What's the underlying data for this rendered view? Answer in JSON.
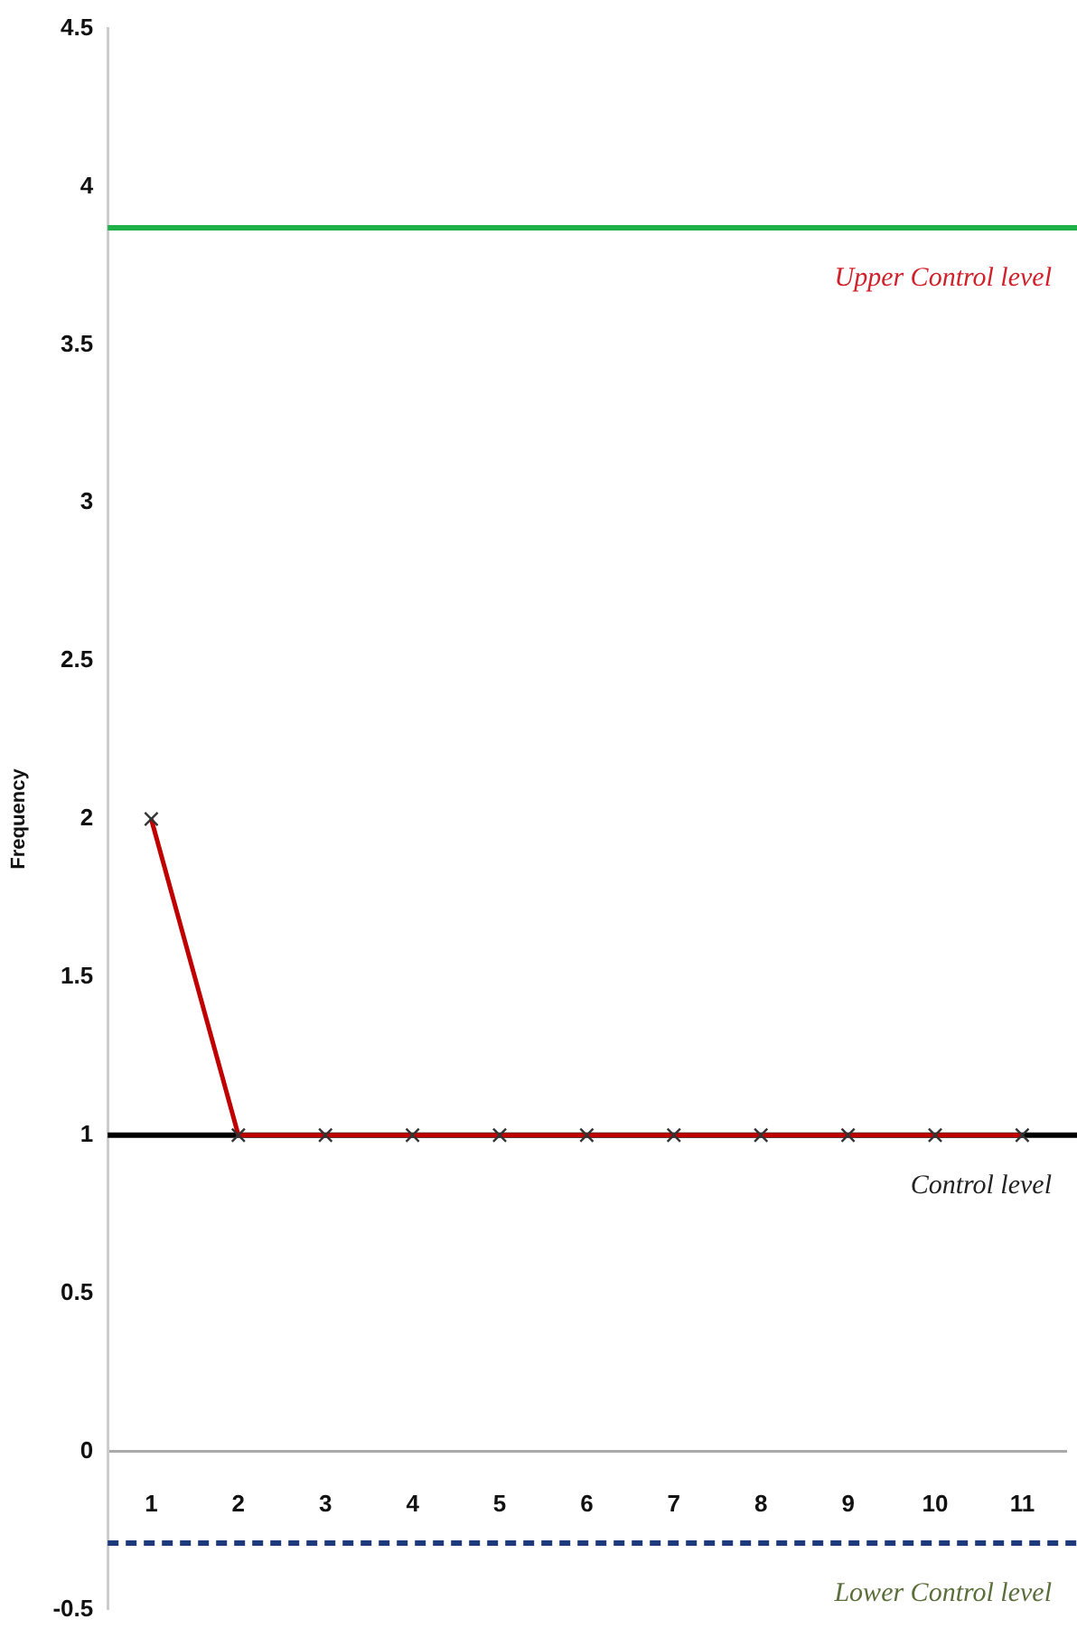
{
  "chart_data": {
    "type": "line",
    "ylabel": "Frequency",
    "categories": [
      "1",
      "2",
      "3",
      "4",
      "5",
      "6",
      "7",
      "8",
      "9",
      "10",
      "11"
    ],
    "series": [
      {
        "color": "#c00000",
        "values": [
          2,
          1,
          1,
          1,
          1,
          1,
          1,
          1,
          1,
          1,
          1
        ]
      }
    ],
    "ylim": [
      -0.5,
      4.5
    ],
    "yticks": [
      -0.5,
      0,
      0.5,
      1,
      1.5,
      2,
      2.5,
      3,
      3.5,
      4,
      4.5
    ],
    "marker": "cross",
    "grid": false,
    "legend": false,
    "ref_lines": [
      {
        "axis": "y",
        "value": 3.87,
        "label": "Upper Control level",
        "color": "#1fb04a",
        "line_style": "solid"
      },
      {
        "axis": "y",
        "value": 1,
        "label": "Control level",
        "color": "#000000",
        "line_style": "solid"
      },
      {
        "axis": "y",
        "value": -0.29,
        "label": "Lower Control level",
        "color": "#1f3a7a",
        "line_style": "dashed"
      }
    ]
  }
}
